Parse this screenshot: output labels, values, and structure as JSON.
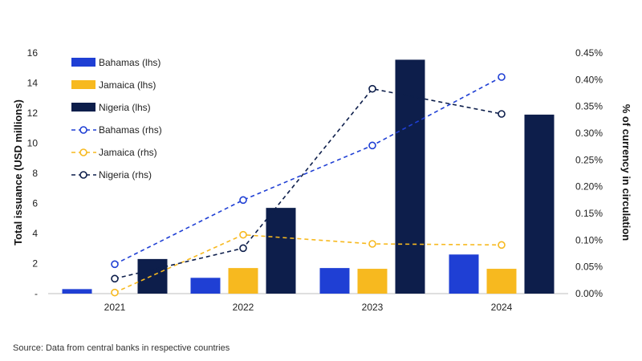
{
  "chart_data": {
    "type": "bar+line",
    "categories": [
      "2021",
      "2022",
      "2023",
      "2024"
    ],
    "bar_series": [
      {
        "name": "Bahamas (lhs)",
        "color": "#1f3fd4",
        "values": [
          0.3,
          1.05,
          1.7,
          2.6
        ]
      },
      {
        "name": "Jamaica (lhs)",
        "color": "#f7b91f",
        "values": [
          0,
          1.7,
          1.65,
          1.65
        ]
      },
      {
        "name": "Nigeria (lhs)",
        "color": "#0d1e4b",
        "values": [
          2.3,
          5.7,
          15.55,
          11.9
        ]
      }
    ],
    "line_series": [
      {
        "name": "Bahamas (rhs)",
        "color": "#1f3fd4",
        "values": [
          0.055,
          0.175,
          0.277,
          0.405
        ]
      },
      {
        "name": "Jamaica (rhs)",
        "color": "#f7b91f",
        "values": [
          0.002,
          0.11,
          0.093,
          0.091
        ]
      },
      {
        "name": "Nigeria (rhs)",
        "color": "#0d1e4b",
        "values": [
          0.028,
          0.085,
          0.383,
          0.336
        ]
      }
    ],
    "y_left": {
      "label": "Total issuance (USD millions)",
      "range": [
        0,
        16
      ],
      "ticks": [
        0,
        2,
        4,
        6,
        8,
        10,
        12,
        14,
        16
      ],
      "tick_labels": [
        "-",
        "2",
        "4",
        "6",
        "8",
        "10",
        "12",
        "14",
        "16"
      ]
    },
    "y_right": {
      "label": "% of currency in circulation",
      "range": [
        0,
        0.45
      ],
      "ticks": [
        0,
        0.05,
        0.1,
        0.15,
        0.2,
        0.25,
        0.3,
        0.35,
        0.4,
        0.45
      ],
      "tick_labels": [
        "0.00%",
        "0.05%",
        "0.10%",
        "0.15%",
        "0.20%",
        "0.25%",
        "0.30%",
        "0.35%",
        "0.40%",
        "0.45%"
      ]
    },
    "legend_position": "top-left",
    "grid": false
  },
  "source_note": "Source: Data from central banks in respective countries"
}
